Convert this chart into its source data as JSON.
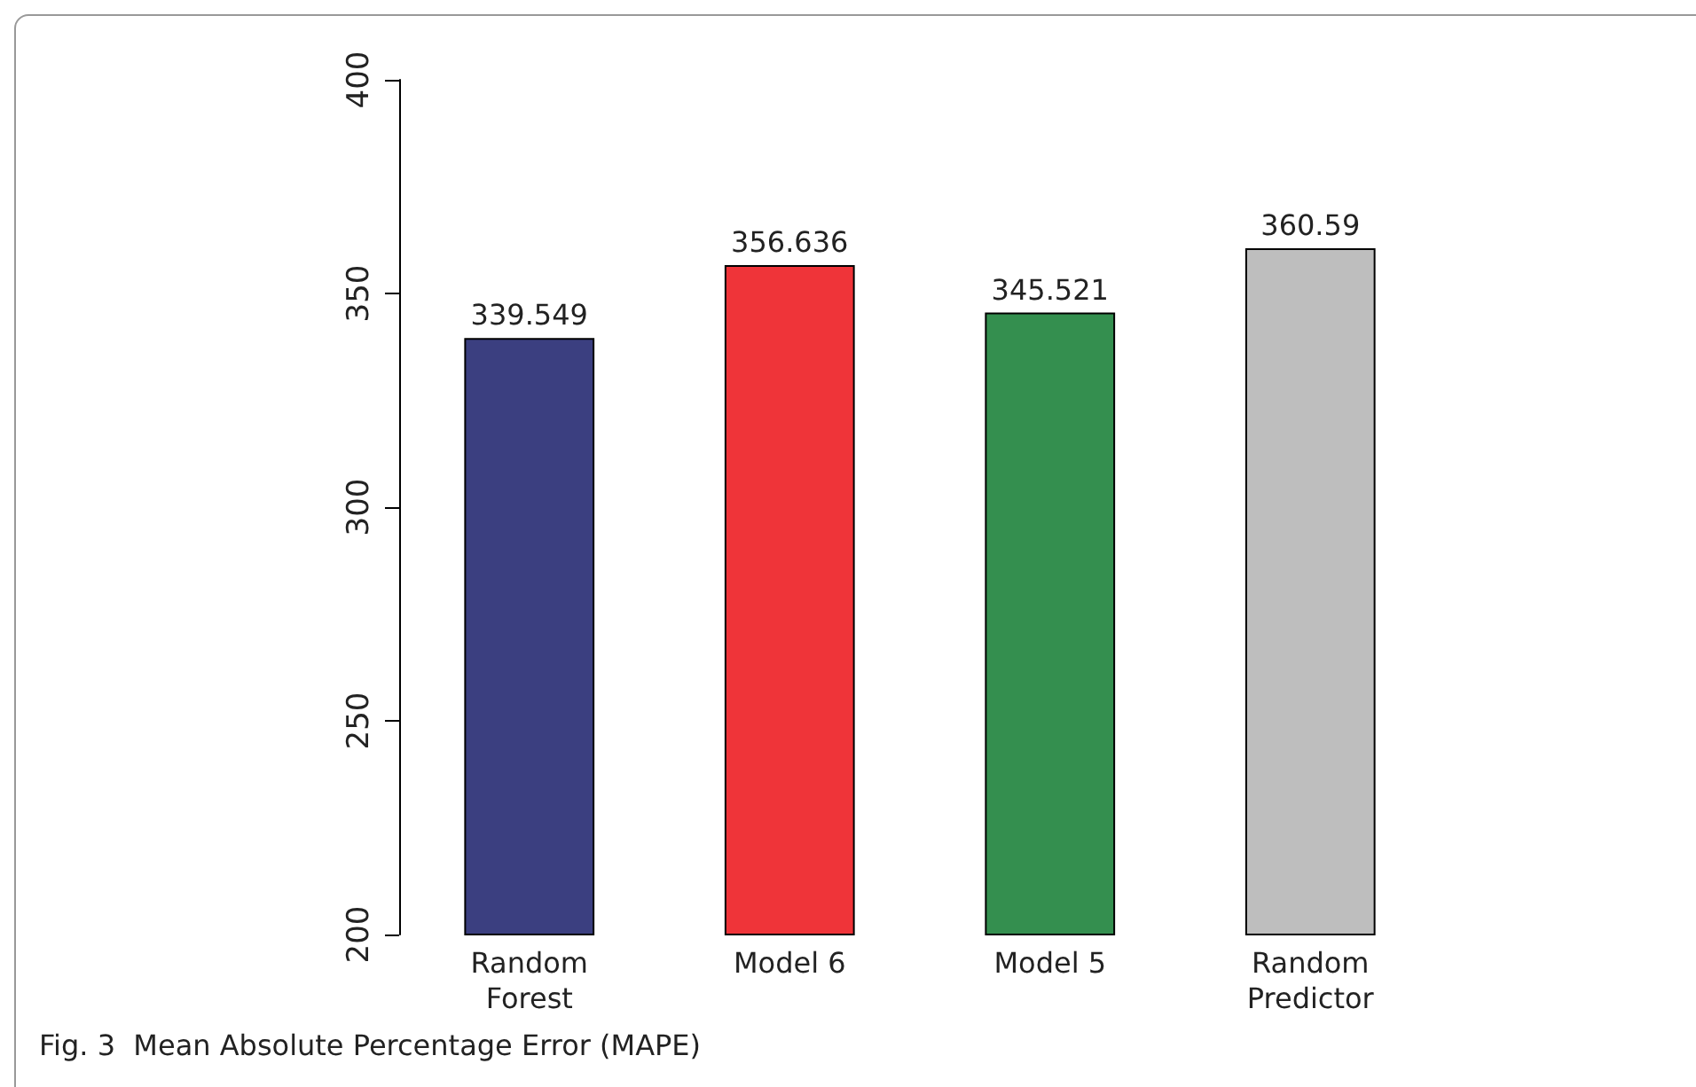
{
  "chart_data": {
    "type": "bar",
    "categories": [
      "Random\nForest",
      "Model 6",
      "Model 5",
      "Random\nPredictor"
    ],
    "values": [
      339.549,
      356.636,
      345.521,
      360.59
    ],
    "colors": [
      "#3b3f80",
      "#ef3439",
      "#348f4f",
      "#bebebe"
    ],
    "ylim": [
      200,
      400
    ],
    "yticks": [
      200,
      250,
      300,
      350,
      400
    ],
    "data_labels": true,
    "annotations": [
      "Fig. 3  Mean Absolute Percentage Error (MAPE)"
    ]
  }
}
